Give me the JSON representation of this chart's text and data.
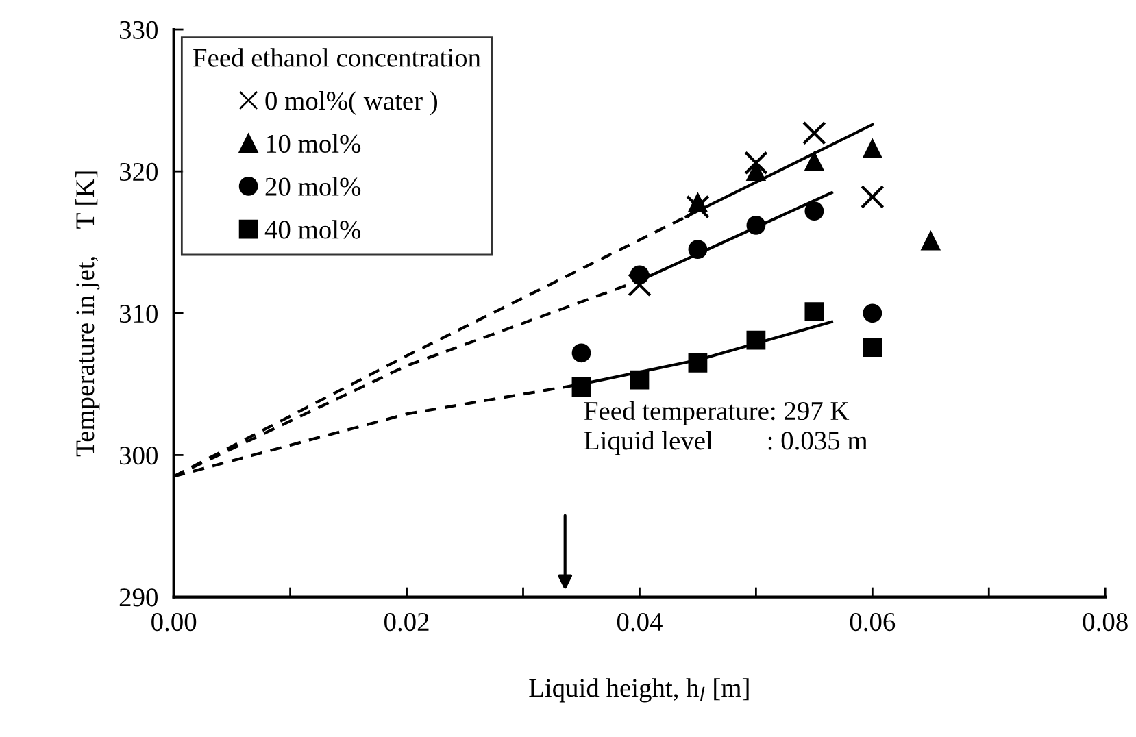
{
  "chart_data": {
    "type": "scatter",
    "xlabel": "Liquid height, h$_{l}$ [m]",
    "ylabel": "Temperature in jet,    T [K]",
    "legend_title": "Feed ethanol concentration",
    "legend": "top left",
    "grid": false,
    "xlim": [
      0,
      0.08
    ],
    "ylim": [
      290,
      330
    ],
    "xticks": [
      {
        "value": 0,
        "label": "0.00"
      },
      {
        "value": 0.01,
        "label": null
      },
      {
        "value": 0.02,
        "label": "0.02"
      },
      {
        "value": 0.03,
        "label": null
      },
      {
        "value": 0.04,
        "label": "0.04"
      },
      {
        "value": 0.05,
        "label": null
      },
      {
        "value": 0.06,
        "label": "0.06"
      },
      {
        "value": 0.07,
        "label": null
      },
      {
        "value": 0.08,
        "label": "0.08"
      }
    ],
    "yticks": [
      290,
      300,
      310,
      320,
      330
    ],
    "annotations": [
      "Feed temperature: 297 K",
      "Liquid level        : 0.035 m"
    ],
    "series": [
      {
        "name": "0 mol%( water )",
        "marker": "cross",
        "color": "#000000",
        "x": [
          0.04,
          0.045,
          0.05,
          0.055,
          0.06
        ],
        "values": [
          312.0,
          317.5,
          320.6,
          322.7,
          318.2
        ]
      },
      {
        "name": "10 mol%",
        "marker": "triangle",
        "color": "#000000",
        "x": [
          0.045,
          0.05,
          0.055,
          0.06,
          0.065
        ],
        "values": [
          317.8,
          320.0,
          320.7,
          321.6,
          315.1
        ]
      },
      {
        "name": "20 mol%",
        "marker": "circle",
        "color": "#000000",
        "x": [
          0.035,
          0.04,
          0.045,
          0.05,
          0.055,
          0.06
        ],
        "values": [
          307.2,
          312.7,
          314.5,
          316.2,
          317.2,
          310.0
        ]
      },
      {
        "name": "40 mol%",
        "marker": "square",
        "color": "#000000",
        "x": [
          0.035,
          0.04,
          0.045,
          0.05,
          0.055,
          0.06
        ],
        "values": [
          304.8,
          305.3,
          306.5,
          308.1,
          310.1,
          307.6
        ]
      },
      {
        "type": "line",
        "line_style": "dashed",
        "color": "#000000",
        "x": [
          0,
          0.02,
          0.044
        ],
        "values": [
          298.5,
          307.0,
          316.8
        ]
      },
      {
        "type": "line",
        "line_style": "solid",
        "color": "#000000",
        "x": [
          0.044,
          0.06
        ],
        "values": [
          316.8,
          323.3
        ]
      },
      {
        "type": "line",
        "line_style": "dashed",
        "color": "#000000",
        "x": [
          0,
          0.02,
          0.04
        ],
        "values": [
          298.5,
          306.3,
          312.3
        ]
      },
      {
        "type": "line",
        "line_style": "solid",
        "color": "#000000",
        "x": [
          0.04,
          0.0565
        ],
        "values": [
          312.3,
          318.5
        ]
      },
      {
        "type": "line",
        "line_style": "dashed",
        "color": "#000000",
        "x": [
          0,
          0.02,
          0.035
        ],
        "values": [
          298.5,
          302.9,
          305.0
        ]
      },
      {
        "type": "line",
        "line_style": "solid",
        "color": "#000000",
        "x": [
          0.035,
          0.045,
          0.0565
        ],
        "values": [
          305.0,
          306.7,
          309.4
        ]
      }
    ]
  }
}
